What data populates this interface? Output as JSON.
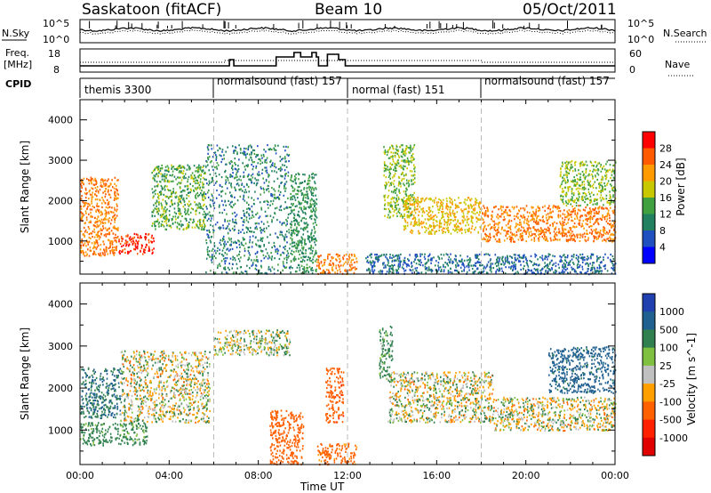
{
  "header": {
    "station": "Saskatoon (fitACF)",
    "beam": "Beam 10",
    "date": "05/Oct/2011"
  },
  "panels": {
    "nsky": {
      "label": "N.Sky",
      "left_ticks": [
        "10^5",
        "10^0"
      ],
      "right_ticks": [
        "10^5",
        "10^0"
      ],
      "right_label": "N.Search"
    },
    "freq": {
      "label_line1": "Freq.",
      "label_line2": "[MHz]",
      "left_ticks": [
        "18",
        "8"
      ],
      "right_ticks": [
        "60",
        "0"
      ],
      "right_label": "Nave"
    },
    "cpid": {
      "label": "CPID",
      "segments": [
        {
          "text": "themis 3300",
          "start_hour": 0
        },
        {
          "text": "normalsound (fast) 157",
          "start_hour": 6
        },
        {
          "text": "normal (fast) 151",
          "start_hour": 12
        },
        {
          "text": "normalsound (fast) 157",
          "start_hour": 18
        }
      ]
    }
  },
  "axes": {
    "ylabel": "Slant Range [km]",
    "yticks": [
      "4000",
      "3000",
      "2000",
      "1000"
    ],
    "xticks": [
      "00:00",
      "04:00",
      "08:00",
      "12:00",
      "16:00",
      "20:00",
      "00:00"
    ],
    "xlabel": "Time UT"
  },
  "colorbars": {
    "power": {
      "label": "Power [dB]",
      "ticks": [
        "28",
        "24",
        "20",
        "16",
        "12",
        "8",
        "4"
      ],
      "colors": [
        "#ff0000",
        "#ff5a00",
        "#ff9a00",
        "#c8c800",
        "#40a040",
        "#208060",
        "#2050c0",
        "#0000ff"
      ]
    },
    "velocity": {
      "label": "Velocity [m s^-1]",
      "ticks": [
        "1000",
        "500",
        "100",
        "25",
        "-25",
        "-100",
        "-500",
        "-1000"
      ],
      "colors": [
        "#2040b0",
        "#206090",
        "#308050",
        "#80c040",
        "#c0c0c0",
        "#ffa000",
        "#ff6000",
        "#ff2000",
        "#e00000"
      ]
    }
  },
  "chart_data": [
    {
      "type": "heatmap",
      "title": "Saskatoon (fitACF) Beam 10 05/Oct/2011",
      "quantity": "Power [dB]",
      "xlabel": "Time UT",
      "ylabel": "Slant Range [km]",
      "xlim_hours": [
        0,
        24
      ],
      "ylim_km": [
        180,
        4500
      ],
      "color_range_db": [
        0,
        30
      ],
      "scatter_regions": [
        {
          "t0": 0.0,
          "t1": 1.7,
          "r0": 650,
          "r1": 2600,
          "power": 22
        },
        {
          "t0": 1.7,
          "t1": 3.3,
          "r0": 700,
          "r1": 1200,
          "power": 26
        },
        {
          "t0": 3.2,
          "t1": 5.6,
          "r0": 1300,
          "r1": 2900,
          "power": 12
        },
        {
          "t0": 5.6,
          "t1": 9.4,
          "r0": 200,
          "r1": 3400,
          "power": 8
        },
        {
          "t0": 9.4,
          "t1": 10.6,
          "r0": 200,
          "r1": 2700,
          "power": 10
        },
        {
          "t0": 10.6,
          "t1": 12.4,
          "r0": 200,
          "r1": 700,
          "power": 22
        },
        {
          "t0": 13.6,
          "t1": 15.0,
          "r0": 1600,
          "r1": 3400,
          "power": 14
        },
        {
          "t0": 14.5,
          "t1": 18.0,
          "r0": 1200,
          "r1": 2100,
          "power": 18
        },
        {
          "t0": 18.0,
          "t1": 24.0,
          "r0": 1000,
          "r1": 1900,
          "power": 22
        },
        {
          "t0": 12.8,
          "t1": 24.0,
          "r0": 200,
          "r1": 700,
          "power": 6
        },
        {
          "t0": 21.5,
          "t1": 24.0,
          "r0": 1900,
          "r1": 3000,
          "power": 14
        }
      ]
    },
    {
      "type": "heatmap",
      "title": "Saskatoon (fitACF) Beam 10 05/Oct/2011",
      "quantity": "Velocity [m s^-1]",
      "xlabel": "Time UT",
      "ylabel": "Slant Range [km]",
      "xlim_hours": [
        0,
        24
      ],
      "ylim_km": [
        180,
        4500
      ],
      "color_range_ms": [
        -1000,
        1000
      ],
      "scatter_regions": [
        {
          "t0": 0.0,
          "t1": 3.0,
          "r0": 650,
          "r1": 1200,
          "velocity": 150
        },
        {
          "t0": 0.0,
          "t1": 1.8,
          "r0": 1300,
          "r1": 2500,
          "velocity": 300
        },
        {
          "t0": 1.8,
          "t1": 5.8,
          "r0": 1200,
          "r1": 2900,
          "velocity": 0
        },
        {
          "t0": 6.0,
          "t1": 9.4,
          "r0": 2800,
          "r1": 3400,
          "velocity": 20
        },
        {
          "t0": 8.5,
          "t1": 10.0,
          "r0": 200,
          "r1": 1500,
          "velocity": -300
        },
        {
          "t0": 10.6,
          "t1": 12.4,
          "r0": 200,
          "r1": 700,
          "velocity": -200
        },
        {
          "t0": 11.0,
          "t1": 11.8,
          "r0": 1200,
          "r1": 2500,
          "velocity": -400
        },
        {
          "t0": 13.8,
          "t1": 18.5,
          "r0": 1200,
          "r1": 2400,
          "velocity": 0
        },
        {
          "t0": 18.5,
          "t1": 24.0,
          "r0": 1000,
          "r1": 1800,
          "velocity": 0
        },
        {
          "t0": 13.4,
          "t1": 14.0,
          "r0": 2200,
          "r1": 3500,
          "velocity": 120
        },
        {
          "t0": 21.0,
          "t1": 24.0,
          "r0": 1900,
          "r1": 3000,
          "velocity": 400
        }
      ]
    }
  ]
}
